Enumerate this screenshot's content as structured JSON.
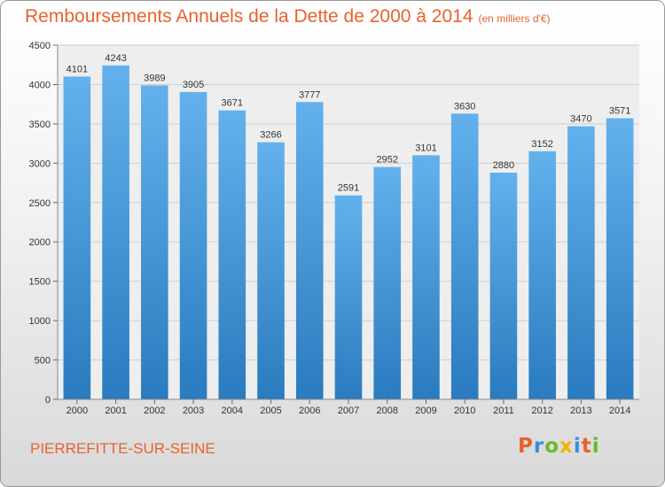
{
  "title": "Remboursements Annuels de la Dette de 2000 à 2014",
  "subtitle": "(en milliers d'€)",
  "city": "PIERREFITTE-SUR-SEINE",
  "logo": "Proxiti",
  "colors": {
    "title": "#e8632e",
    "bar_top": "#63b1ec",
    "bar_bottom": "#2a7bbf",
    "logo_letters": [
      "#e8632e",
      "#3a8fd9",
      "#6bb82b",
      "#f0b400",
      "#3a8fd9",
      "#e8632e",
      "#6bb82b"
    ]
  },
  "chart_data": {
    "type": "bar",
    "categories": [
      "2000",
      "2001",
      "2002",
      "2003",
      "2004",
      "2005",
      "2006",
      "2007",
      "2008",
      "2009",
      "2010",
      "2011",
      "2012",
      "2013",
      "2014"
    ],
    "values": [
      4101,
      4243,
      3989,
      3905,
      3671,
      3266,
      3777,
      2591,
      2952,
      3101,
      3630,
      2880,
      3152,
      3470,
      3571
    ],
    "ylim": [
      0,
      4500
    ],
    "yticks": [
      0,
      500,
      1000,
      1500,
      2000,
      2500,
      3000,
      3500,
      4000,
      4500
    ],
    "grid": true,
    "xlabel": "",
    "ylabel": ""
  }
}
